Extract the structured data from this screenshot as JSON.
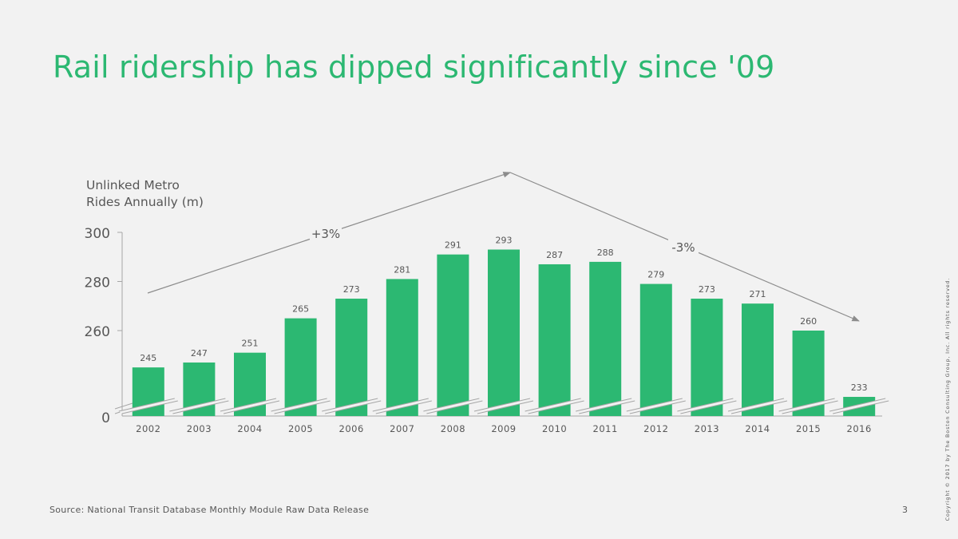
{
  "page": {
    "title": "Rail ridership has dipped significantly since '09",
    "source": "Source: National Transit Database Monthly Module Raw Data Release",
    "page_number": "3",
    "copyright": "Copyright © 2017 by The Boston Consulting Group, Inc. All rights reserved."
  },
  "colors": {
    "title": "#2cb872",
    "bar": "#2cb872",
    "text": "#575757",
    "axis": "#a6a6a6",
    "background": "#f2f2f2"
  },
  "chart_data": {
    "type": "bar",
    "title": "",
    "ylabel_lines": [
      "Unlinked Metro",
      "Rides Annually (m)"
    ],
    "xlabel": "",
    "categories": [
      "2002",
      "2003",
      "2004",
      "2005",
      "2006",
      "2007",
      "2008",
      "2009",
      "2010",
      "2011",
      "2012",
      "2013",
      "2014",
      "2015",
      "2016"
    ],
    "values": [
      245,
      247,
      251,
      265,
      273,
      281,
      291,
      293,
      287,
      288,
      279,
      273,
      271,
      260,
      233
    ],
    "ylim": [
      230,
      300
    ],
    "y_ticks": [
      300,
      280,
      260
    ],
    "y_break_label": "0",
    "axis_break": true,
    "grid": false,
    "annotations": [
      {
        "text": "+3%",
        "from_category": "2002",
        "to_category": "2009"
      },
      {
        "text": "-3%",
        "from_category": "2009",
        "to_category": "2016"
      }
    ]
  }
}
